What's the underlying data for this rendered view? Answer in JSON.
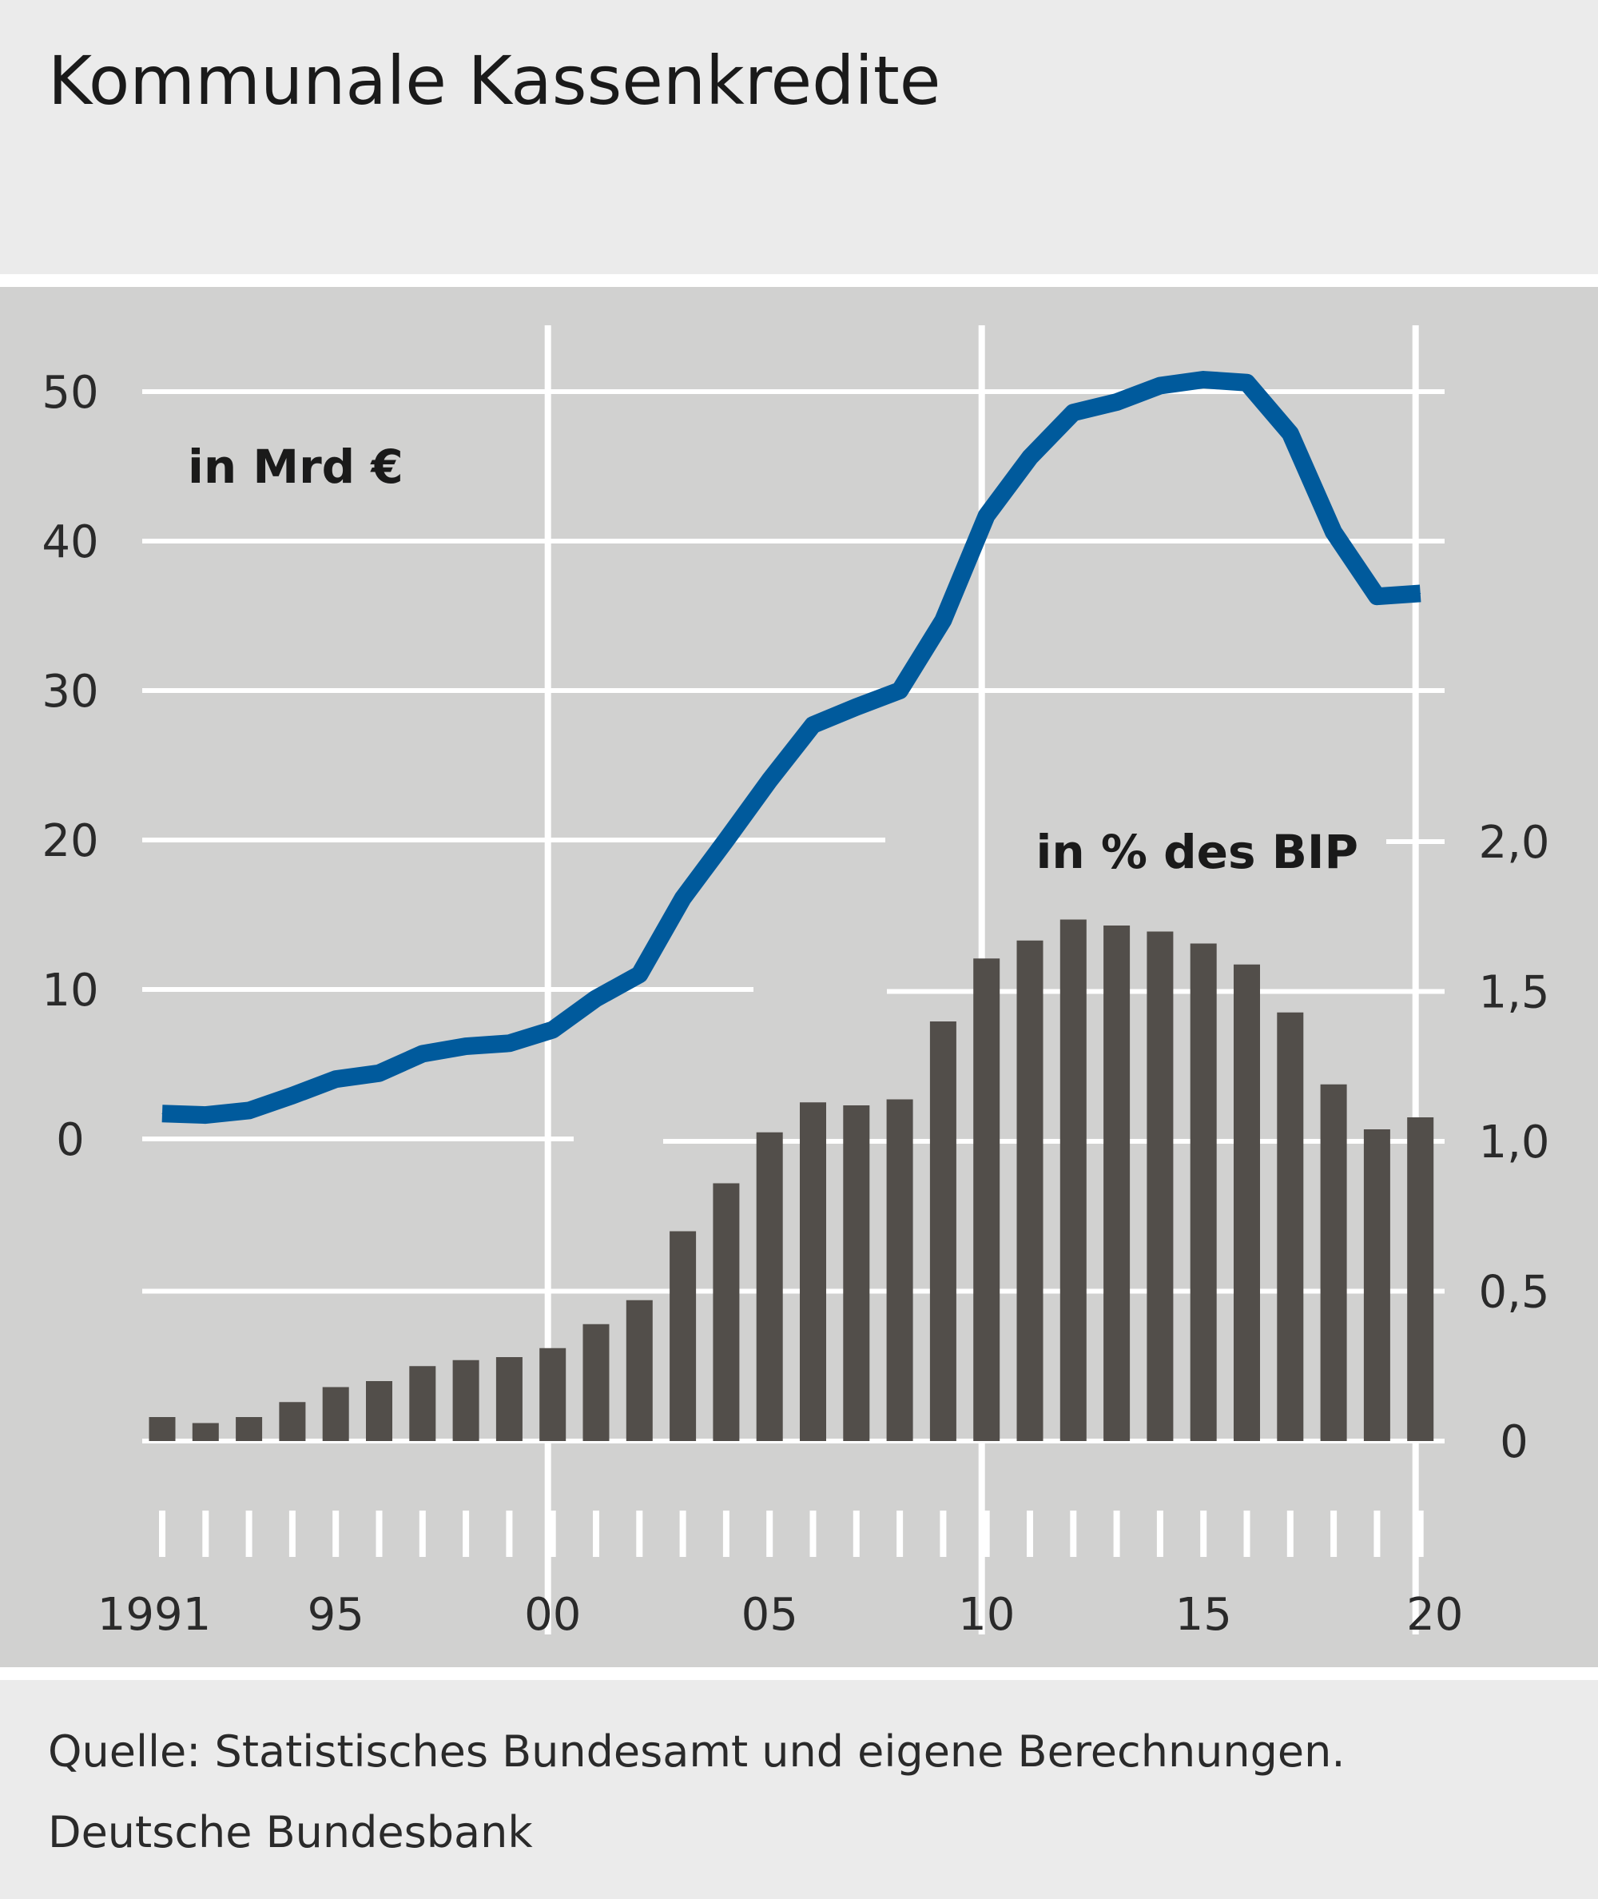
{
  "title": "Kommunale Kassenkredite",
  "source": "Quelle: Statistisches Bundesamt und eigene Berechnungen.",
  "publisher": "Deutsche Bundesbank",
  "colors": {
    "header_bg": "#ebebeb",
    "plot_bg": "#d1d1d0",
    "line": "#005a9c",
    "bar": "#524e4a",
    "grid": "#ffffff"
  },
  "chart_data": [
    {
      "type": "line",
      "label": "in Mrd €",
      "x": [
        1991,
        1992,
        1993,
        1994,
        1995,
        1996,
        1997,
        1998,
        1999,
        2000,
        2001,
        2002,
        2003,
        2004,
        2005,
        2006,
        2007,
        2008,
        2009,
        2010,
        2011,
        2012,
        2013,
        2014,
        2015,
        2016,
        2017,
        2018,
        2019,
        2020
      ],
      "values": [
        1.7,
        1.6,
        1.9,
        2.9,
        4.0,
        4.4,
        5.7,
        6.2,
        6.4,
        7.3,
        9.4,
        11.0,
        16.1,
        20.0,
        24.0,
        27.7,
        28.9,
        30.0,
        34.7,
        41.7,
        45.6,
        48.6,
        49.3,
        50.4,
        50.8,
        50.6,
        47.2,
        40.6,
        36.3,
        36.5
      ],
      "ylim": [
        -20,
        55
      ],
      "yticks": [
        0,
        10,
        20,
        30,
        40,
        50
      ],
      "ytick_labels": [
        "0",
        "10",
        "20",
        "30",
        "40",
        "50"
      ],
      "axis": "left"
    },
    {
      "type": "bar",
      "label": "in % des BIP",
      "x": [
        1991,
        1992,
        1993,
        1994,
        1995,
        1996,
        1997,
        1998,
        1999,
        2000,
        2001,
        2002,
        2003,
        2004,
        2005,
        2006,
        2007,
        2008,
        2009,
        2010,
        2011,
        2012,
        2013,
        2014,
        2015,
        2016,
        2017,
        2018,
        2019,
        2020
      ],
      "values": [
        0.08,
        0.06,
        0.08,
        0.13,
        0.18,
        0.2,
        0.25,
        0.27,
        0.28,
        0.31,
        0.39,
        0.47,
        0.7,
        0.86,
        1.03,
        1.13,
        1.12,
        1.14,
        1.4,
        1.61,
        1.67,
        1.74,
        1.72,
        1.7,
        1.66,
        1.59,
        1.43,
        1.19,
        1.04,
        1.08
      ],
      "ylim": [
        -0.25,
        2.8
      ],
      "yticks": [
        0,
        0.5,
        1.0,
        1.5,
        2.0
      ],
      "ytick_labels": [
        "0",
        "0,5",
        "1,0",
        "1,5",
        "2,0"
      ],
      "axis": "right"
    }
  ],
  "x_axis": {
    "tick_labels": [
      {
        "year": 1991,
        "label": "1991"
      },
      {
        "year": 1995,
        "label": "95"
      },
      {
        "year": 2000,
        "label": "00"
      },
      {
        "year": 2005,
        "label": "05"
      },
      {
        "year": 2010,
        "label": "10"
      },
      {
        "year": 2015,
        "label": "15"
      },
      {
        "year": 2020,
        "label": "20"
      }
    ],
    "vertical_gridlines_at": [
      2000,
      2010,
      2020
    ]
  }
}
